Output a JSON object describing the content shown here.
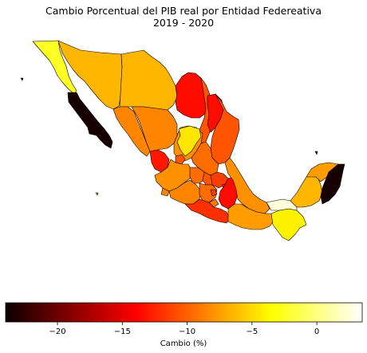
{
  "title": "Cambio Porcentual del PIB real por Entidad Federeativa",
  "subtitle": "2019 - 2020",
  "colorbar": {
    "label": "Cambio (%)",
    "colormap": "hot",
    "min": -24,
    "max": 3.5,
    "ticks": [
      {
        "value": -20,
        "label": "−20"
      },
      {
        "value": -15,
        "label": "−15"
      },
      {
        "value": -10,
        "label": "−10"
      },
      {
        "value": -5,
        "label": "−5"
      },
      {
        "value": 0,
        "label": "0"
      }
    ]
  },
  "regions": [
    {
      "id": "baja-california",
      "value": -2.5
    },
    {
      "id": "baja-california-sur",
      "value": -23.5
    },
    {
      "id": "sonora",
      "value": -6.5
    },
    {
      "id": "chihuahua",
      "value": -6.5
    },
    {
      "id": "coahuila",
      "value": -13.5
    },
    {
      "id": "nuevo-leon",
      "value": -10.5
    },
    {
      "id": "tamaulipas",
      "value": -10.5
    },
    {
      "id": "sinaloa",
      "value": -8.5
    },
    {
      "id": "durango",
      "value": -8.5
    },
    {
      "id": "zacatecas",
      "value": -8.0
    },
    {
      "id": "san-luis-potosi",
      "value": -9.5
    },
    {
      "id": "nayarit",
      "value": -13.0
    },
    {
      "id": "aguascalientes",
      "value": -10.5
    },
    {
      "id": "jalisco",
      "value": -8.0
    },
    {
      "id": "guanajuato",
      "value": -9.5
    },
    {
      "id": "queretaro",
      "value": -10.5
    },
    {
      "id": "hidalgo",
      "value": -11.5
    },
    {
      "id": "colima",
      "value": -8.5
    },
    {
      "id": "michoacan",
      "value": -8.5
    },
    {
      "id": "mexico",
      "value": -9.5
    },
    {
      "id": "cdmx",
      "value": -11.5
    },
    {
      "id": "morelos",
      "value": -9.0
    },
    {
      "id": "tlaxcala",
      "value": -12.5
    },
    {
      "id": "puebla",
      "value": -13.5
    },
    {
      "id": "veracruz",
      "value": -8.0
    },
    {
      "id": "guerrero",
      "value": -12.0
    },
    {
      "id": "oaxaca",
      "value": -7.5
    },
    {
      "id": "chiapas",
      "value": -4.0
    },
    {
      "id": "tabasco",
      "value": 2.5
    },
    {
      "id": "campeche",
      "value": -6.5
    },
    {
      "id": "yucatan",
      "value": -7.5
    },
    {
      "id": "quintana-roo",
      "value": -23.5
    },
    {
      "id": "nl-alt",
      "value": -13.5
    },
    {
      "id": "zac-inner",
      "value": -4.5
    }
  ]
}
